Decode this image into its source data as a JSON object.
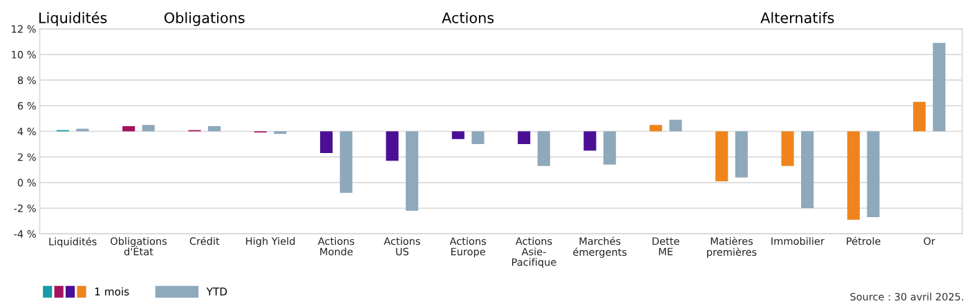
{
  "chart_data": {
    "type": "bar",
    "categories": [
      "Liquidités",
      "Obligations\nd'État",
      "Crédit",
      "High Yield",
      "Actions\nMonde",
      "Actions\nUS",
      "Actions\nEurope",
      "Actions\nAsie-\nPacifique",
      "Marchés\némergents",
      "Dette\nME",
      "Matières\npremières",
      "Immobilier",
      "Pétrole",
      "Or"
    ],
    "series": [
      {
        "name": "1 mois",
        "colors": [
          "#1a9aa8",
          "#a5125e",
          "#a5125e",
          "#a5125e",
          "#4b0f96",
          "#4b0f96",
          "#4b0f96",
          "#4b0f96",
          "#4b0f96",
          "#f0841c",
          "#f0841c",
          "#f0841c",
          "#f0841c",
          "#f0841c"
        ],
        "base": [
          4,
          4,
          4,
          4,
          4,
          4,
          4,
          4,
          4,
          4,
          4,
          4,
          4,
          4
        ],
        "values": [
          0.1,
          0.4,
          0.1,
          -0.1,
          -1.7,
          -2.3,
          -0.6,
          -1.0,
          -1.5,
          0.5,
          -3.9,
          -2.7,
          -6.9,
          2.3
        ]
      },
      {
        "name": "YTD",
        "color": "#8ea8bc",
        "base": [
          4,
          4,
          4,
          4,
          4,
          4,
          4,
          4,
          4,
          4,
          4,
          4,
          4,
          4
        ],
        "values": [
          0.2,
          0.5,
          0.4,
          -0.2,
          -4.8,
          -6.2,
          -1.0,
          -2.7,
          -2.6,
          0.9,
          -3.6,
          -6.0,
          -6.7,
          6.9
        ]
      }
    ],
    "ylim": [
      -4,
      12
    ],
    "yticks": [
      {
        "value": -4,
        "label": "-4 %"
      },
      {
        "value": -2,
        "label": "-2 %"
      },
      {
        "value": 0,
        "label": "0 %"
      },
      {
        "value": 2,
        "label": "2 %"
      },
      {
        "value": 4,
        "label": "4 %"
      },
      {
        "value": 6,
        "label": "6 %"
      },
      {
        "value": 8,
        "label": "8 %"
      },
      {
        "value": 10,
        "label": "10 %"
      },
      {
        "value": 12,
        "label": "12 %"
      }
    ],
    "grid": "y",
    "legend": "bottom left",
    "annotations": [
      "Liquidités",
      "Obligations",
      "Actions",
      "Alternatifs",
      "Source : 30 avril 2025."
    ]
  }
}
